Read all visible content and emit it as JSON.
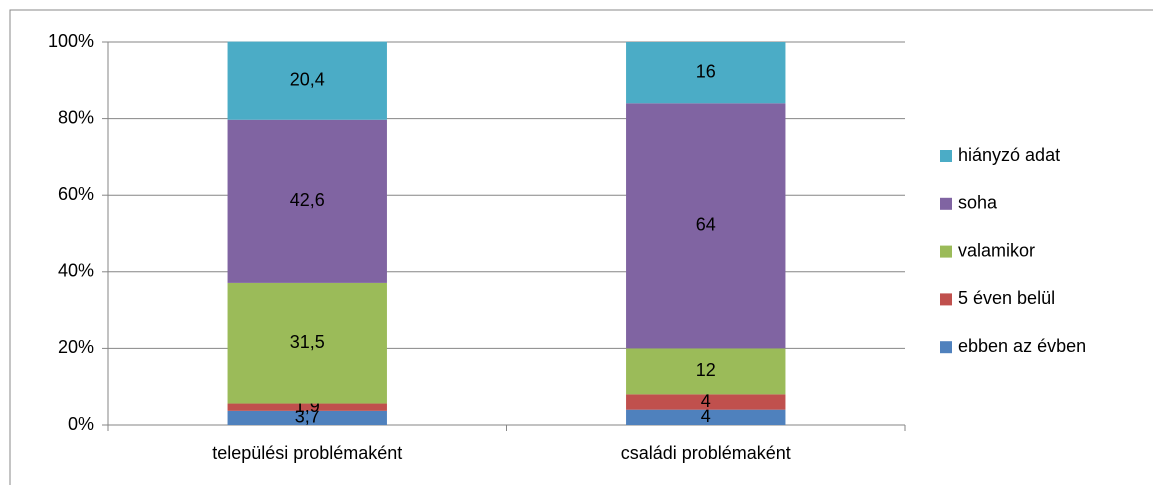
{
  "chart_data": {
    "type": "stacked_bar",
    "categories": [
      "települési problémaként",
      "családi problémaként"
    ],
    "series": [
      {
        "name": "ebben az évben",
        "color": "#4f81bd",
        "values": [
          3.7,
          4
        ],
        "value_labels": [
          "3,7",
          "4"
        ]
      },
      {
        "name": "5 éven belül",
        "color": "#c0504d",
        "values": [
          1.9,
          4
        ],
        "value_labels": [
          "1,9",
          "4"
        ]
      },
      {
        "name": "valamikor",
        "color": "#9bbb59",
        "values": [
          31.5,
          12
        ],
        "value_labels": [
          "31,5",
          "12"
        ]
      },
      {
        "name": "soha",
        "color": "#8064a2",
        "values": [
          42.6,
          64
        ],
        "value_labels": [
          "42,6",
          "64"
        ]
      },
      {
        "name": "hiányzó adat",
        "color": "#4bacc6",
        "values": [
          20.4,
          16
        ],
        "value_labels": [
          "20,4",
          "16"
        ]
      }
    ],
    "ylim": [
      0,
      100
    ],
    "yticks": [
      {
        "value": 0,
        "label": "0%"
      },
      {
        "value": 20,
        "label": "20%"
      },
      {
        "value": 40,
        "label": "40%"
      },
      {
        "value": 60,
        "label": "60%"
      },
      {
        "value": 80,
        "label": "80%"
      },
      {
        "value": 100,
        "label": "100%"
      }
    ],
    "grid": true,
    "legend": "right"
  }
}
